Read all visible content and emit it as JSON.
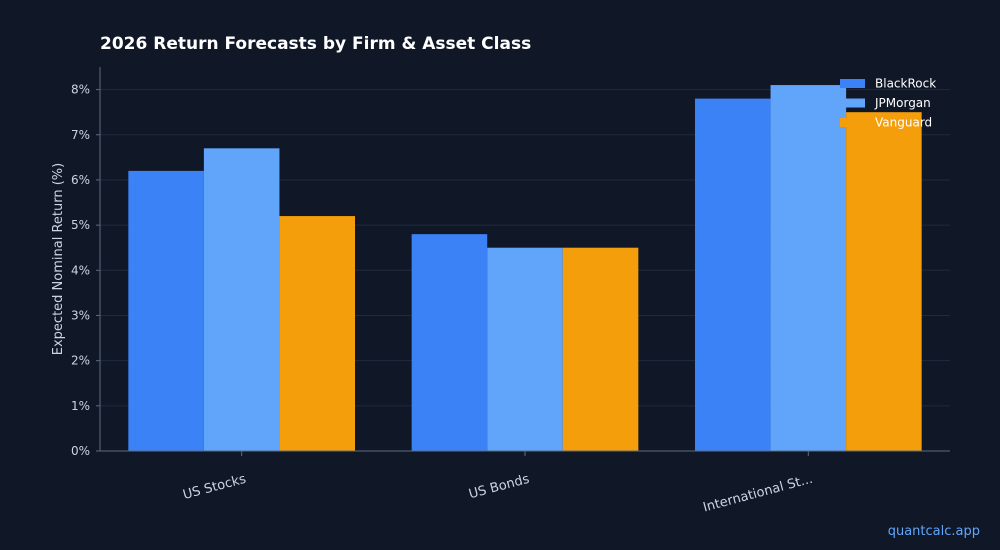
{
  "chart_data": {
    "type": "bar",
    "title": "2026 Return Forecasts by Firm & Asset Class",
    "xlabel": "",
    "ylabel": "Expected Nominal Return (%)",
    "categories": [
      "US Stocks",
      "US Bonds",
      "International St..."
    ],
    "series": [
      {
        "name": "BlackRock",
        "values": [
          6.2,
          4.8,
          7.8
        ],
        "color": "#3b82f6"
      },
      {
        "name": "JPMorgan",
        "values": [
          6.7,
          4.5,
          8.1
        ],
        "color": "#60a5fa"
      },
      {
        "name": "Vanguard",
        "values": [
          5.2,
          4.5,
          7.5
        ],
        "color": "#f59e0b"
      }
    ],
    "ylim": [
      0,
      8.5
    ],
    "yticks": [
      0,
      1,
      2,
      3,
      4,
      5,
      6,
      7,
      8
    ],
    "ytick_suffix": "%",
    "grid": true,
    "legend_position": "top-right",
    "colors": {
      "background": "#101828",
      "grid": "#1e2a3e",
      "axis": "#5b6b80",
      "text": "#ffffff",
      "tick_text": "#cbd5e1"
    }
  },
  "watermark": "quantcalc.app"
}
